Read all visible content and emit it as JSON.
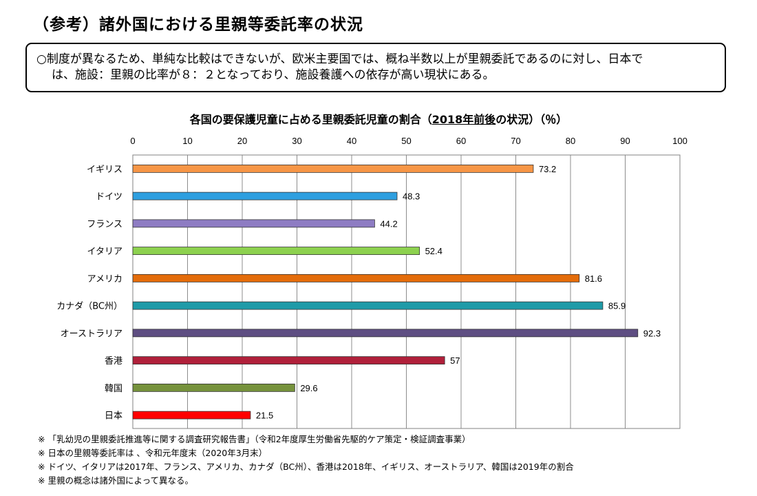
{
  "page": {
    "title": "（参考）諸外国における里親等委託率の状況",
    "summary_lines": [
      "○制度が異なるため、単純な比較はできないが、欧米主要国では、概ね半数以上が里親委託であるのに対し、日本で",
      "は、施設：里親の比率が８：２となっており、施設養護への依存が高い現状にある。"
    ]
  },
  "chart_title": {
    "part1": "各国の要保護児童に占める里親委託児童の割合（",
    "part2": "2018年前後",
    "part3": "の状況）（％）"
  },
  "chart_data": {
    "type": "bar",
    "orientation": "horizontal",
    "categories": [
      "イギリス",
      "ドイツ",
      "フランス",
      "イタリア",
      "アメリカ",
      "カナダ（BC州）",
      "オーストラリア",
      "香港",
      "韓国",
      "日本"
    ],
    "values": [
      73.2,
      48.3,
      44.2,
      52.4,
      81.6,
      85.9,
      92.3,
      57,
      29.6,
      21.5
    ],
    "value_labels": [
      "73.2",
      "48.3",
      "44.2",
      "52.4",
      "81.6",
      "85.9",
      "92.3",
      "57",
      "29.6",
      "21.5"
    ],
    "colors": [
      "#F79646",
      "#2E9FE0",
      "#8E7CC3",
      "#8DD14F",
      "#E46C0A",
      "#1F9BA8",
      "#5E4E82",
      "#B0203A",
      "#76923C",
      "#FF0000"
    ],
    "xlim": [
      0,
      100
    ],
    "xticks": [
      0,
      10,
      20,
      30,
      40,
      50,
      60,
      70,
      80,
      90,
      100
    ],
    "x_axis_position": "top",
    "grid": true
  },
  "footnotes": [
    "※ 「乳幼児の里親委託推進等に関する調査研究報告書」（令和2年度厚生労働省先駆的ケア策定・検証調査事業）",
    "※ 日本の里親等委託率は 、令和元年度末（2020年3月末）",
    "※ ドイツ、イタリアは2017年、フランス、アメリカ、カナダ（BC州）、香港は2018年、イギリス、オーストラリア、韓国は2019年の割合",
    "※ 里親の概念は諸外国によって異なる。"
  ]
}
